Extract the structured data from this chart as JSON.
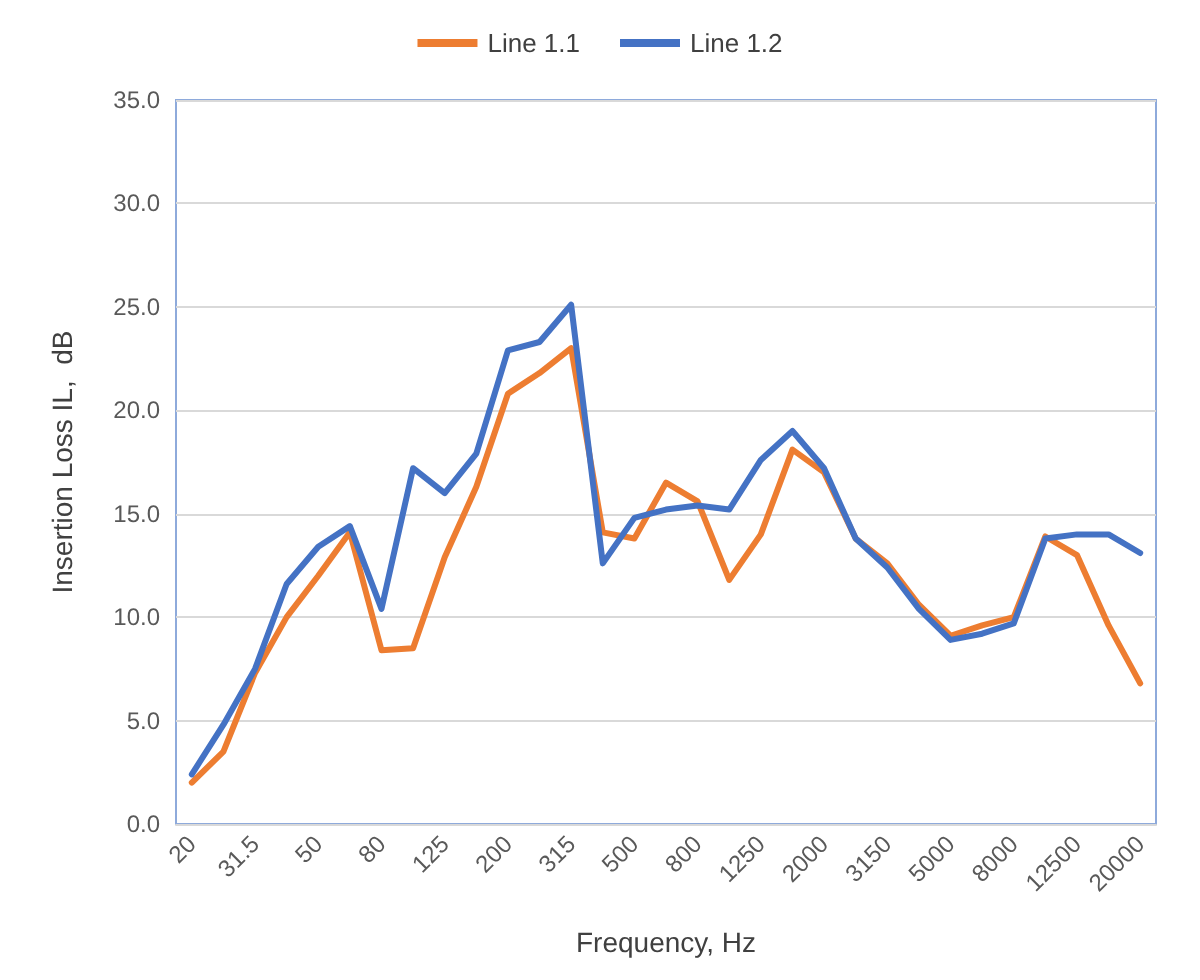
{
  "chart_data": {
    "type": "line",
    "xlabel": "Frequency, Hz",
    "ylabel": "Insertion Loss IL,  dB",
    "categories": [
      "20",
      null,
      "31.5",
      null,
      "50",
      null,
      "80",
      null,
      "125",
      null,
      "200",
      null,
      "315",
      null,
      "500",
      null,
      "800",
      null,
      "1250",
      null,
      "2000",
      null,
      "3150",
      null,
      "5000",
      null,
      "8000",
      null,
      "12500",
      null,
      "20000"
    ],
    "series": [
      {
        "name": "Line 1.1",
        "color": "#ed7d31",
        "values": [
          2.0,
          3.5,
          7.3,
          10.0,
          12.0,
          14.1,
          8.4,
          8.5,
          12.9,
          16.3,
          20.8,
          21.8,
          23.0,
          14.1,
          13.8,
          16.5,
          15.6,
          11.8,
          14.0,
          18.1,
          17.0,
          13.8,
          12.6,
          10.6,
          9.1,
          9.6,
          10.0,
          13.9,
          13.0,
          9.6,
          6.8
        ]
      },
      {
        "name": "Line 1.2",
        "color": "#4472c4",
        "values": [
          2.4,
          4.8,
          7.5,
          11.6,
          13.4,
          14.4,
          10.4,
          17.2,
          16.0,
          17.9,
          22.9,
          23.3,
          25.1,
          12.6,
          14.8,
          15.2,
          15.4,
          15.2,
          17.6,
          19.0,
          17.2,
          13.8,
          12.4,
          10.4,
          8.9,
          9.2,
          9.7,
          13.8,
          14.0,
          14.0,
          13.1
        ]
      }
    ],
    "ylim": [
      0,
      35
    ],
    "yticks": [
      {
        "value": 0,
        "label": "0.0"
      },
      {
        "value": 5,
        "label": "5.0"
      },
      {
        "value": 10,
        "label": "10.0"
      },
      {
        "value": 15,
        "label": "15.0"
      },
      {
        "value": 20,
        "label": "20.0"
      },
      {
        "value": 25,
        "label": "25.0"
      },
      {
        "value": 30,
        "label": "30.0"
      },
      {
        "value": 35,
        "label": "35.0"
      }
    ],
    "grid": "y",
    "legend": "top",
    "marker": "none",
    "line_style": "solid"
  }
}
